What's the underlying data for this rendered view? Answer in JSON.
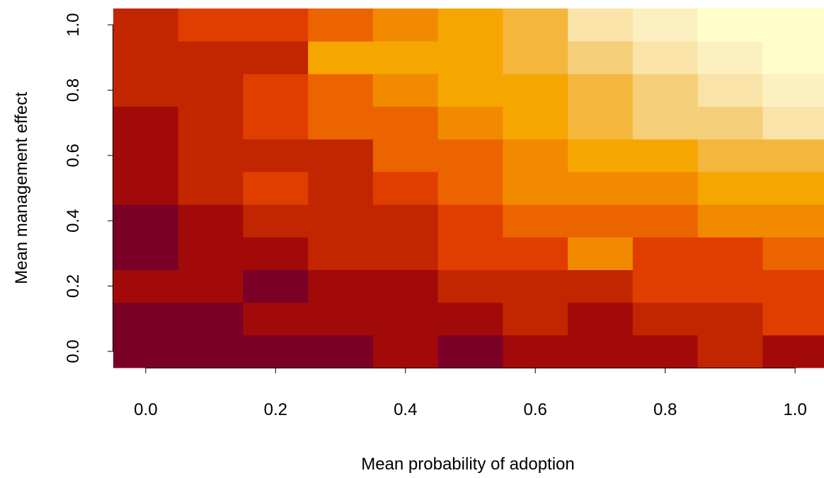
{
  "chart_data": {
    "type": "heatmap",
    "xlabel": "Mean probability of adoption",
    "ylabel": "Mean management effect",
    "x": [
      0,
      0.1,
      0.2,
      0.3,
      0.4,
      0.5,
      0.6,
      0.7,
      0.8,
      0.9,
      1
    ],
    "y": [
      0,
      0.1,
      0.2,
      0.3,
      0.4,
      0.5,
      0.6,
      0.7,
      0.8,
      0.9,
      1
    ],
    "z": [
      [
        0,
        0,
        0,
        0,
        1,
        0,
        1,
        1,
        1,
        2,
        1
      ],
      [
        0,
        0,
        1,
        1,
        1,
        1,
        2,
        1,
        2,
        2,
        3
      ],
      [
        1,
        1,
        0,
        1,
        1,
        2,
        2,
        2,
        3,
        3,
        3
      ],
      [
        0,
        1,
        1,
        2,
        2,
        3,
        3,
        5,
        3,
        3,
        4
      ],
      [
        0,
        1,
        2,
        2,
        2,
        3,
        4,
        4,
        4,
        5,
        5
      ],
      [
        1,
        2,
        3,
        2,
        3,
        4,
        5,
        5,
        5,
        6,
        6
      ],
      [
        1,
        2,
        2,
        2,
        4,
        4,
        5,
        6,
        6,
        7,
        7
      ],
      [
        1,
        2,
        3,
        4,
        4,
        5,
        6,
        7,
        8,
        8,
        9
      ],
      [
        2,
        2,
        3,
        4,
        5,
        6,
        6,
        7,
        8,
        9,
        10
      ],
      [
        2,
        2,
        2,
        6,
        6,
        6,
        7,
        8,
        9,
        10,
        11
      ],
      [
        2,
        3,
        3,
        4,
        5,
        6,
        7,
        9,
        10,
        11,
        11
      ]
    ],
    "colors": [
      "#7A0028",
      "#A20A0A",
      "#C22600",
      "#E03E00",
      "#EC6400",
      "#F28A00",
      "#F5A600",
      "#F5B63E",
      "#F5CE7A",
      "#F9E3A8",
      "#FCF0C0",
      "#FFFDCA"
    ],
    "xlim": [
      -0.05,
      1.05
    ],
    "ylim": [
      -0.05,
      1.05
    ],
    "xticks": [
      {
        "value": 0,
        "label": "0.0"
      },
      {
        "value": 0.2,
        "label": "0.2"
      },
      {
        "value": 0.4,
        "label": "0.4"
      },
      {
        "value": 0.6,
        "label": "0.6"
      },
      {
        "value": 0.8,
        "label": "0.8"
      },
      {
        "value": 1,
        "label": "1.0"
      }
    ],
    "yticks": [
      {
        "value": 0,
        "label": "0.0"
      },
      {
        "value": 0.2,
        "label": "0.2"
      },
      {
        "value": 0.4,
        "label": "0.4"
      },
      {
        "value": 0.6,
        "label": "0.6"
      },
      {
        "value": 0.8,
        "label": "0.8"
      },
      {
        "value": 1,
        "label": "1.0"
      }
    ]
  }
}
